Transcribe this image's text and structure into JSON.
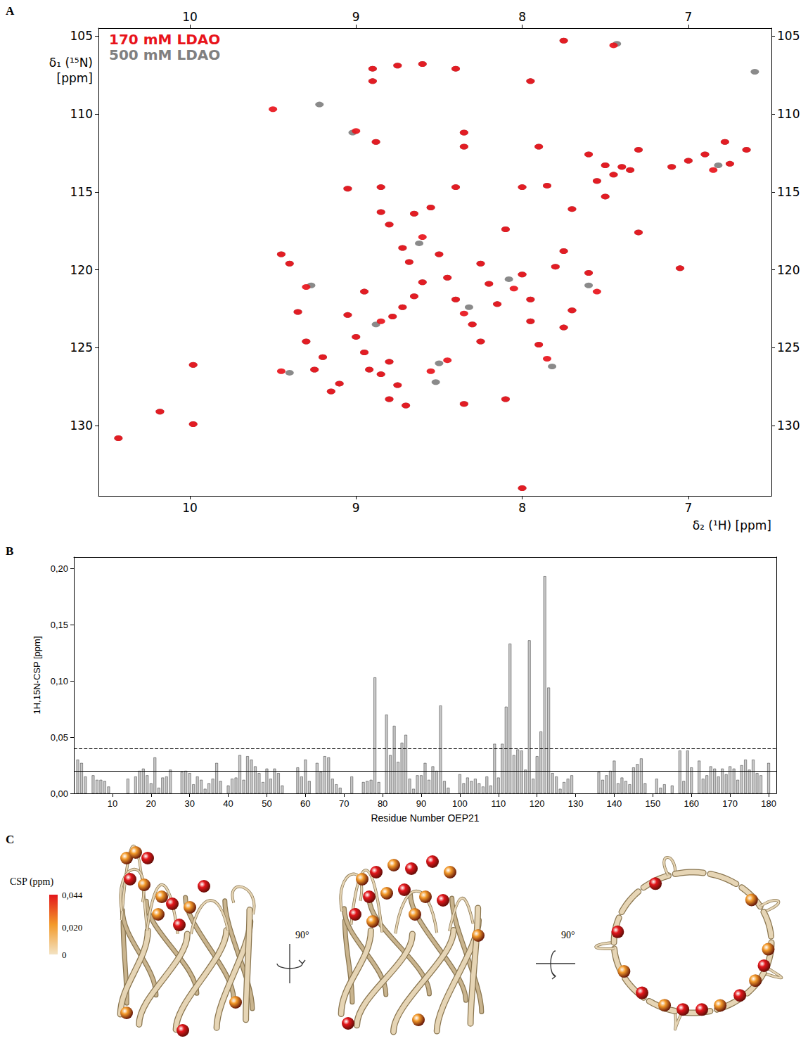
{
  "chart_data": [
    {
      "panel": "A",
      "type": "scatter",
      "x_label": "δ₂ (¹H) [ppm]",
      "y_label": "δ₁ (¹⁵N) [ppm]",
      "xlim": [
        10.55,
        6.5
      ],
      "xticks": [
        7,
        8,
        9,
        10
      ],
      "ylim": [
        134.5,
        104.5
      ],
      "yticks": [
        105,
        110,
        115,
        120,
        125,
        130
      ],
      "legend": "upper left",
      "marker": "circle",
      "grid": false,
      "series": [
        {
          "name": "170 mM LDAO",
          "color": "#e8141b",
          "x": [
            10.43,
            10.18,
            9.98,
            9.98,
            9.5,
            9.3,
            9.45,
            9.4,
            9.35,
            9.3,
            9.45,
            9.25,
            9.2,
            9.15,
            9.1,
            9.05,
            8.95,
            9.0,
            8.95,
            8.92,
            8.85,
            8.8,
            8.7,
            8.75,
            8.8,
            8.85,
            8.78,
            8.72,
            8.65,
            8.6,
            8.68,
            8.72,
            8.8,
            8.85,
            8.65,
            8.6,
            8.55,
            8.5,
            8.45,
            8.4,
            8.35,
            8.3,
            8.25,
            8.45,
            8.55,
            8.35,
            8.1,
            8.25,
            8.2,
            8.15,
            8.1,
            8.05,
            8.0,
            7.95,
            7.95,
            7.9,
            7.85,
            7.75,
            7.7,
            7.8,
            7.75,
            7.6,
            7.55,
            8.0,
            9.05,
            8.85,
            8.4,
            8.0,
            7.85,
            7.7,
            7.3,
            7.05,
            9.0,
            8.88,
            8.35,
            8.35,
            7.9,
            8.9,
            8.75,
            8.6,
            8.4,
            8.9,
            7.95,
            7.75,
            7.45,
            7.6,
            7.5,
            7.45,
            7.4,
            7.55,
            7.5,
            7.35,
            7.3,
            7.1,
            7.0,
            6.9,
            6.85,
            6.78,
            6.75,
            6.65
          ],
          "values": [
            130.8,
            129.1,
            129.9,
            126.1,
            109.7,
            121.1,
            119.0,
            119.6,
            122.7,
            124.6,
            126.5,
            126.4,
            125.6,
            127.8,
            127.3,
            122.9,
            121.4,
            124.3,
            125.3,
            126.4,
            126.7,
            128.3,
            128.7,
            127.4,
            125.9,
            123.3,
            123.0,
            122.4,
            121.7,
            120.8,
            119.5,
            118.6,
            117.1,
            116.3,
            116.4,
            117.9,
            116.0,
            119.0,
            120.5,
            121.9,
            122.8,
            123.5,
            124.6,
            125.8,
            126.5,
            128.6,
            128.3,
            119.6,
            120.9,
            122.2,
            117.4,
            121.2,
            120.3,
            121.9,
            123.3,
            124.8,
            125.7,
            123.7,
            122.6,
            119.8,
            118.8,
            120.2,
            121.4,
            134.0,
            114.8,
            114.7,
            114.7,
            114.7,
            114.6,
            116.1,
            117.6,
            119.9,
            111.1,
            111.8,
            111.2,
            112.1,
            112.1,
            107.1,
            106.9,
            106.8,
            107.1,
            107.9,
            107.9,
            105.3,
            105.6,
            112.6,
            113.3,
            113.9,
            113.4,
            114.3,
            115.3,
            113.6,
            112.3,
            113.4,
            113.0,
            112.6,
            113.6,
            111.8,
            113.2,
            112.3
          ]
        },
        {
          "name": "500 mM LDAO",
          "color": "#808080",
          "x": [
            10.43,
            10.18,
            9.98,
            9.98,
            9.22,
            9.27,
            9.45,
            9.4,
            9.35,
            9.3,
            9.4,
            9.25,
            9.2,
            9.15,
            9.1,
            9.05,
            8.95,
            9.0,
            8.95,
            8.92,
            8.85,
            8.8,
            8.7,
            8.75,
            8.8,
            8.88,
            8.78,
            8.72,
            8.65,
            8.6,
            8.68,
            8.72,
            8.8,
            8.85,
            8.65,
            8.62,
            8.55,
            8.5,
            8.45,
            8.4,
            8.32,
            8.3,
            8.25,
            8.5,
            8.52,
            8.35,
            8.1,
            8.25,
            8.2,
            8.15,
            8.1,
            8.08,
            8.0,
            7.95,
            7.95,
            7.9,
            7.82,
            7.75,
            7.7,
            7.8,
            7.75,
            7.6,
            7.6,
            8.0,
            9.05,
            8.85,
            8.4,
            8.0,
            7.85,
            7.7,
            7.3,
            7.05,
            9.02,
            8.88,
            8.35,
            8.35,
            7.9,
            8.9,
            8.75,
            8.6,
            8.4,
            8.9,
            7.95,
            7.75,
            7.43,
            7.6,
            7.5,
            7.45,
            7.4,
            7.55,
            7.5,
            7.35,
            7.3,
            7.1,
            7.0,
            6.9,
            6.82,
            6.78,
            6.75,
            6.65,
            6.6
          ],
          "values": [
            130.8,
            129.1,
            129.9,
            126.1,
            109.4,
            121.0,
            119.0,
            119.6,
            122.7,
            124.6,
            126.6,
            126.4,
            125.6,
            127.8,
            127.3,
            122.9,
            121.4,
            124.3,
            125.3,
            126.4,
            126.7,
            128.3,
            128.7,
            127.4,
            125.9,
            123.5,
            123.0,
            122.4,
            121.7,
            120.8,
            119.5,
            118.6,
            117.1,
            116.3,
            116.4,
            118.3,
            116.0,
            119.0,
            120.5,
            121.9,
            122.4,
            123.5,
            124.6,
            126.0,
            127.2,
            128.6,
            128.3,
            119.6,
            120.9,
            122.2,
            117.4,
            120.6,
            120.3,
            121.9,
            123.3,
            124.8,
            126.2,
            123.7,
            122.6,
            119.8,
            118.8,
            120.2,
            121.0,
            134.0,
            114.8,
            114.7,
            114.7,
            114.7,
            114.6,
            116.1,
            117.6,
            119.9,
            111.2,
            111.8,
            111.2,
            112.1,
            112.1,
            107.1,
            106.9,
            106.8,
            107.1,
            107.9,
            107.9,
            105.3,
            105.5,
            112.6,
            113.3,
            113.9,
            113.4,
            114.3,
            115.3,
            113.6,
            112.3,
            113.4,
            113.0,
            112.6,
            113.3,
            111.8,
            113.2,
            112.3,
            107.3
          ]
        }
      ]
    },
    {
      "panel": "B",
      "type": "bar",
      "x_label": "Residue Number OEP21",
      "y_label": "1H,15N-CSP [ppm]",
      "color": "#c8c8c8",
      "grid": false,
      "xlim": [
        0,
        182
      ],
      "xticks": [
        10,
        20,
        30,
        40,
        50,
        60,
        70,
        80,
        90,
        100,
        110,
        120,
        130,
        140,
        150,
        160,
        170,
        180
      ],
      "ylim": [
        0,
        0.21
      ],
      "yticks": [
        {
          "value": 0,
          "label": "0,00"
        },
        {
          "value": 0.05,
          "label": "0,05"
        },
        {
          "value": 0.1,
          "label": "0,10"
        },
        {
          "value": 0.15,
          "label": "0,15"
        },
        {
          "value": 0.2,
          "label": "0,20"
        }
      ],
      "reference_lines": [
        {
          "value": 0.044,
          "line_style": "dashed"
        },
        {
          "value": 0.02,
          "line_style": "solid"
        }
      ],
      "x": [
        1,
        2,
        3,
        4,
        5,
        6,
        7,
        8,
        9,
        10,
        11,
        12,
        13,
        14,
        15,
        16,
        17,
        18,
        19,
        20,
        21,
        22,
        23,
        24,
        25,
        26,
        27,
        28,
        29,
        30,
        31,
        32,
        33,
        34,
        35,
        36,
        37,
        38,
        39,
        40,
        41,
        42,
        43,
        44,
        45,
        46,
        47,
        48,
        49,
        50,
        51,
        52,
        53,
        54,
        55,
        56,
        57,
        58,
        59,
        60,
        61,
        62,
        63,
        64,
        65,
        66,
        67,
        68,
        69,
        70,
        71,
        72,
        73,
        74,
        75,
        76,
        77,
        78,
        79,
        80,
        81,
        82,
        83,
        84,
        85,
        86,
        87,
        88,
        89,
        90,
        91,
        92,
        93,
        94,
        95,
        96,
        97,
        98,
        99,
        100,
        101,
        102,
        103,
        104,
        105,
        106,
        107,
        108,
        109,
        110,
        111,
        112,
        113,
        114,
        115,
        116,
        117,
        118,
        119,
        120,
        121,
        122,
        123,
        124,
        125,
        126,
        127,
        128,
        129,
        130,
        131,
        132,
        133,
        134,
        135,
        136,
        137,
        138,
        139,
        140,
        141,
        142,
        143,
        144,
        145,
        146,
        147,
        148,
        149,
        150,
        151,
        152,
        153,
        154,
        155,
        156,
        157,
        158,
        159,
        160,
        161,
        162,
        163,
        164,
        165,
        166,
        167,
        168,
        169,
        170,
        171,
        172,
        173,
        174,
        175,
        176,
        177,
        178,
        179,
        180
      ],
      "values": [
        0.03,
        0.027,
        0.015,
        null,
        0.016,
        0.012,
        0.012,
        0.011,
        0.006,
        null,
        null,
        null,
        null,
        0.013,
        null,
        0.015,
        0.02,
        0.022,
        0.016,
        0.009,
        0.032,
        0.005,
        0.014,
        0.015,
        0.021,
        null,
        null,
        0.019,
        0.02,
        0.018,
        0.008,
        0.015,
        0.012,
        0.004,
        0.009,
        0.013,
        0.027,
        0.011,
        null,
        0.007,
        0.013,
        0.014,
        0.034,
        0.012,
        0.033,
        0.03,
        0.024,
        0.018,
        0.01,
        0.022,
        0.013,
        0.022,
        0.018,
        0.007,
        null,
        null,
        null,
        0.023,
        0.015,
        0.03,
        0.011,
        null,
        0.027,
        0.019,
        0.033,
        0.032,
        0.013,
        0.008,
        0.005,
        null,
        null,
        0.015,
        null,
        null,
        0.01,
        0.011,
        0.012,
        0.103,
        0.01,
        null,
        0.07,
        0.034,
        0.06,
        0.028,
        0.045,
        0.052,
        0.013,
        0.004,
        0.016,
        0.016,
        0.027,
        0.012,
        0.024,
        0.02,
        0.078,
        0.011,
        0.005,
        null,
        null,
        0.017,
        0.009,
        0.014,
        0.011,
        0.013,
        0.009,
        0.006,
        0.015,
        0.007,
        0.044,
        0.014,
        0.044,
        0.077,
        0.133,
        0.034,
        0.039,
        0.038,
        0.021,
        0.136,
        0.013,
        0.033,
        0.055,
        0.193,
        0.094,
        0.018,
        0.015,
        0.004,
        0.01,
        0.013,
        0.016,
        null,
        null,
        null,
        null,
        null,
        null,
        0.019,
        0.012,
        0.016,
        0.02,
        0.029,
        0.009,
        0.014,
        0.011,
        0.008,
        0.023,
        0.026,
        0.031,
        0.009,
        null,
        null,
        0.013,
        0.005,
        0.008,
        null,
        0.007,
        null,
        0.038,
        0.011,
        0.038,
        0.023,
        null,
        0.029,
        0.013,
        0.016,
        0.024,
        0.022,
        0.015,
        0.022,
        0.017,
        0.024,
        0.022,
        0.012,
        0.025,
        0.03,
        0.021,
        0.03,
        0.018,
        0.016,
        null,
        0.027
      ]
    }
  ],
  "structure_panel": {
    "panel": "C",
    "colorbar": {
      "title": "CSP (ppm)",
      "range": [
        0,
        0.044
      ],
      "ticks": [
        {
          "value": 0.044,
          "label": "0,044"
        },
        {
          "value": 0.02,
          "label": "0,020"
        },
        {
          "value": 0,
          "label": "0"
        }
      ],
      "colors": [
        "#f3e3c3",
        "#f39a2a",
        "#e3161b"
      ]
    },
    "rotation_labels": [
      "90°",
      "90°"
    ]
  }
}
